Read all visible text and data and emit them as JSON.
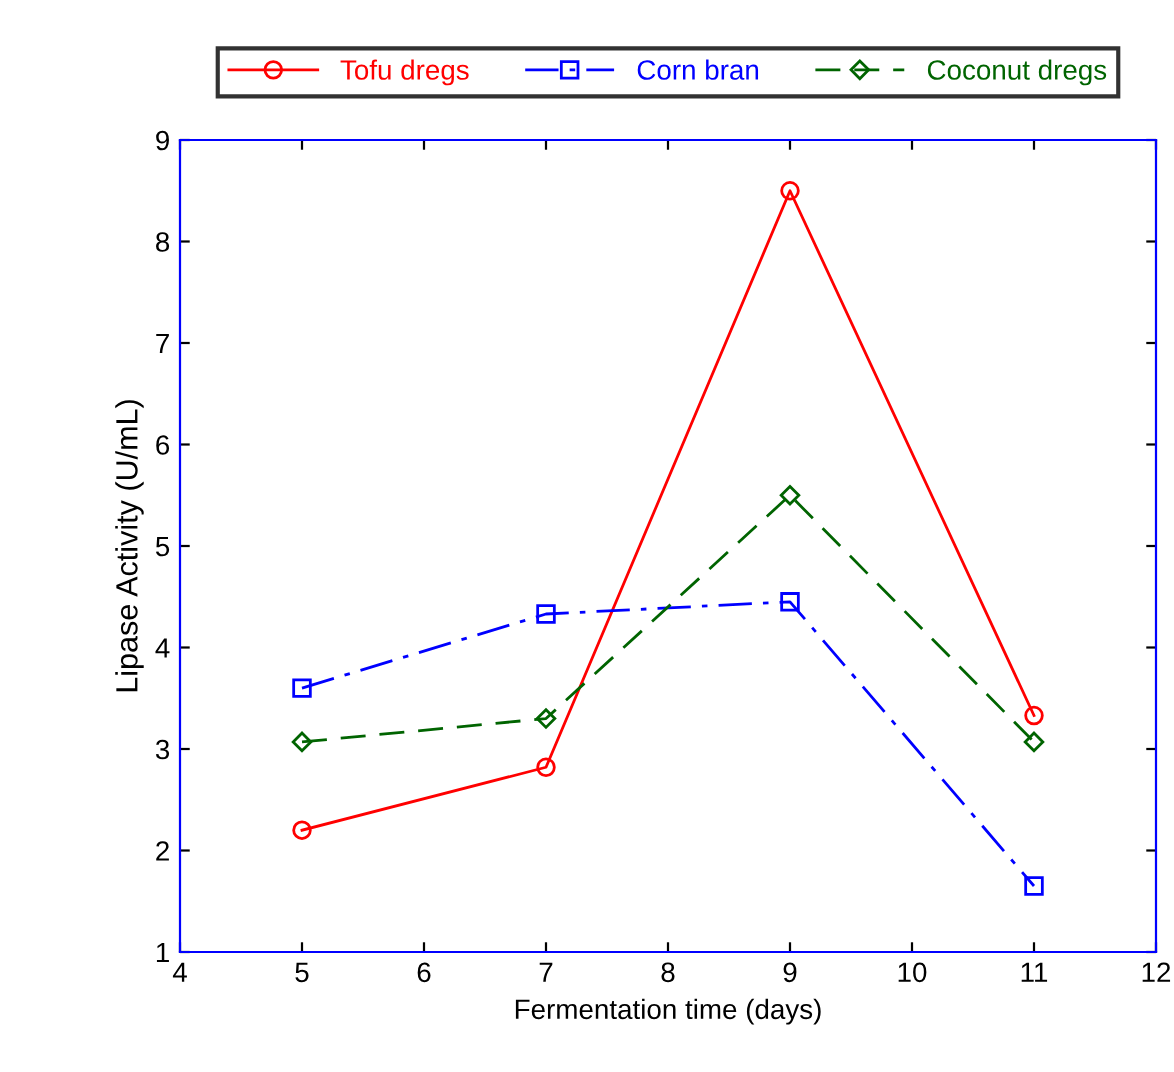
{
  "chart_data": {
    "type": "line",
    "xlabel": "Fermentation time (days)",
    "ylabel": "Lipase Activity (U/mL)",
    "x": [
      5,
      7,
      9,
      11
    ],
    "series": [
      {
        "name": "Tofu dregs",
        "color": "#ff0000",
        "values": [
          2.2,
          2.82,
          8.5,
          3.33
        ],
        "marker": "circle",
        "line_style": "solid"
      },
      {
        "name": "Corn bran",
        "color": "#0000ff",
        "values": [
          3.6,
          4.33,
          4.45,
          1.65
        ],
        "marker": "square",
        "line_style": "dashdot"
      },
      {
        "name": "Coconut dregs",
        "color": "#006400",
        "values": [
          3.07,
          3.3,
          5.5,
          3.07
        ],
        "marker": "diamond",
        "line_style": "dashed"
      }
    ],
    "xlim": [
      4,
      12
    ],
    "xticks": [
      4,
      5,
      6,
      7,
      8,
      9,
      10,
      11,
      12
    ],
    "ylim": [
      1,
      9
    ],
    "yticks": [
      1,
      2,
      3,
      4,
      5,
      6,
      7,
      8,
      9
    ],
    "grid": false,
    "legend": "top"
  }
}
